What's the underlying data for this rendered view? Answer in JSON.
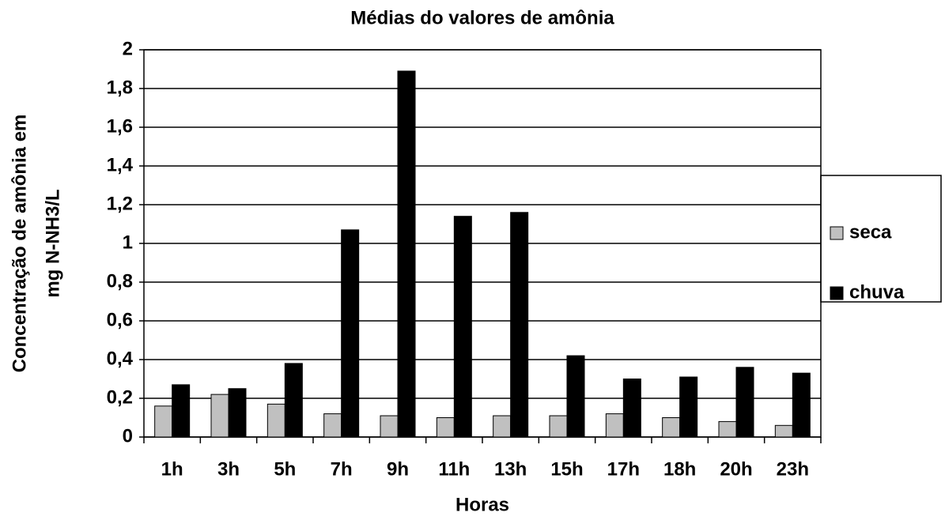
{
  "chart_data": {
    "type": "bar",
    "title": "Médias do valores de amônia",
    "xlabel": "Horas",
    "ylabel": [
      "Concentração de amônia em",
      "mg N-NH3/L"
    ],
    "categories": [
      "1h",
      "3h",
      "5h",
      "7h",
      "9h",
      "11h",
      "13h",
      "15h",
      "17h",
      "18h",
      "20h",
      "23h"
    ],
    "series": [
      {
        "name": "seca",
        "color": "#c0c0c0",
        "values": [
          0.16,
          0.22,
          0.17,
          0.12,
          0.11,
          0.1,
          0.11,
          0.11,
          0.12,
          0.1,
          0.08,
          0.06
        ]
      },
      {
        "name": "chuva",
        "color": "#000000",
        "values": [
          0.27,
          0.25,
          0.38,
          1.07,
          1.89,
          1.14,
          1.16,
          0.42,
          0.3,
          0.31,
          0.36,
          0.33
        ]
      }
    ],
    "ylim": [
      0,
      2
    ],
    "yticks": [
      0,
      {
        "value": 0.2,
        "label": "0,2"
      },
      {
        "value": 0.4,
        "label": "0,4"
      },
      {
        "value": 0.6,
        "label": "0,6"
      },
      {
        "value": 0.8,
        "label": "0,8"
      },
      1,
      {
        "value": 1.2,
        "label": "1,2"
      },
      {
        "value": 1.4,
        "label": "1,4"
      },
      {
        "value": 1.6,
        "label": "1,6"
      },
      {
        "value": 1.8,
        "label": "1,8"
      },
      2
    ],
    "grid": true,
    "legend": "right"
  }
}
